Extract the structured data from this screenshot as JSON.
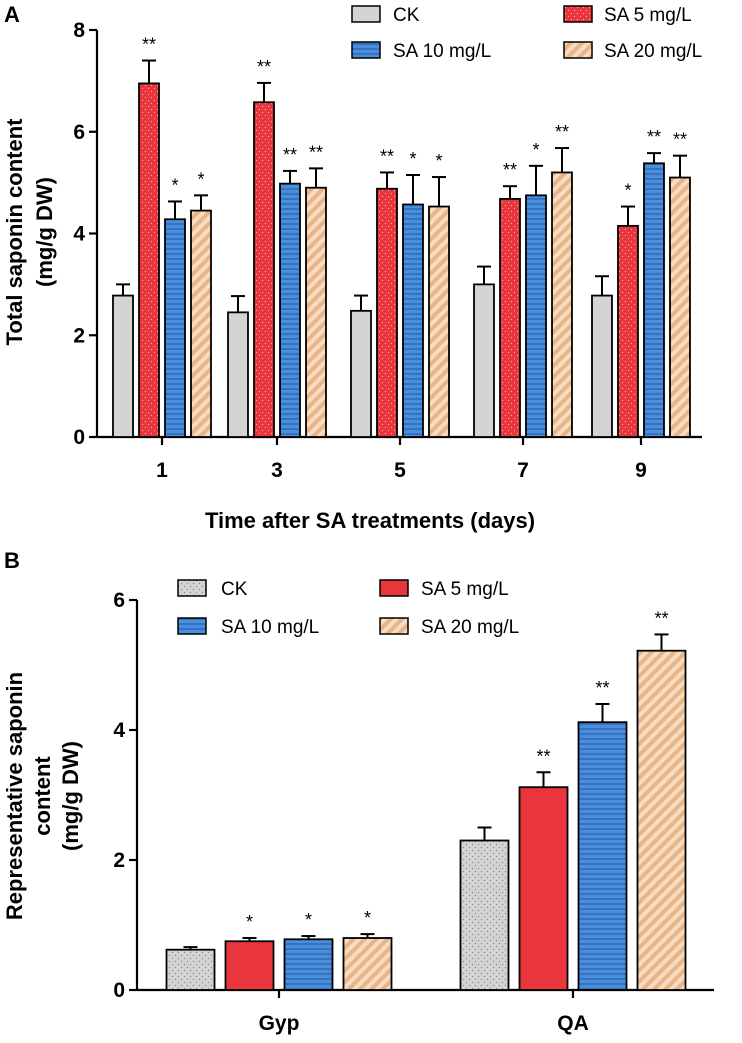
{
  "colors": {
    "ck": "#d4d4d4",
    "sa5": "#e8363c",
    "sa10": "#4a8fde",
    "sa20": "#f5c7a0",
    "sa20_stripe": "#dfa77a",
    "sa10_stripe": "#2a5fa8",
    "axis": "#000000"
  },
  "chart_data": [
    {
      "type": "bar",
      "panel_label": "A",
      "xlabel": "Time after SA treatments (days)",
      "ylabel_lines": [
        "Total saponin content",
        "(mg/g DW)"
      ],
      "ylim": [
        0,
        8
      ],
      "yticks": [
        "0",
        "2",
        "4",
        "6",
        "8"
      ],
      "legend_position": "top-right",
      "categories": [
        "1",
        "3",
        "5",
        "7",
        "9"
      ],
      "series": [
        {
          "name": "CK",
          "values": [
            2.78,
            2.45,
            2.48,
            3.0,
            2.78
          ],
          "errors": [
            0.22,
            0.32,
            0.3,
            0.35,
            0.38
          ],
          "sig": [
            "",
            "",
            "",
            "",
            ""
          ]
        },
        {
          "name": "SA 5 mg/L",
          "values": [
            6.95,
            6.58,
            4.88,
            4.68,
            4.15
          ],
          "errors": [
            0.45,
            0.38,
            0.32,
            0.25,
            0.38
          ],
          "sig": [
            "**",
            "**",
            "**",
            "**",
            "*"
          ]
        },
        {
          "name": "SA 10 mg/L",
          "values": [
            4.28,
            4.98,
            4.57,
            4.75,
            5.38
          ],
          "errors": [
            0.35,
            0.25,
            0.58,
            0.58,
            0.2
          ],
          "sig": [
            "*",
            "**",
            "*",
            "*",
            "**"
          ]
        },
        {
          "name": "SA 20 mg/L",
          "values": [
            4.45,
            4.9,
            4.53,
            5.2,
            5.1
          ],
          "errors": [
            0.3,
            0.38,
            0.58,
            0.48,
            0.43
          ],
          "sig": [
            "*",
            "**",
            "*",
            "**",
            "**"
          ]
        }
      ]
    },
    {
      "type": "bar",
      "panel_label": "B",
      "xlabel": "",
      "ylabel_lines": [
        "Representative saponin",
        "content",
        "(mg/g DW)"
      ],
      "ylim": [
        0,
        6
      ],
      "yticks": [
        "0",
        "2",
        "4",
        "6"
      ],
      "legend_position": "top-left",
      "categories": [
        "Gyp",
        "QA"
      ],
      "series": [
        {
          "name": "CK",
          "values": [
            0.62,
            2.3
          ],
          "errors": [
            0.04,
            0.2
          ],
          "sig": [
            "",
            ""
          ]
        },
        {
          "name": "SA 5 mg/L",
          "values": [
            0.75,
            3.12
          ],
          "errors": [
            0.05,
            0.23
          ],
          "sig": [
            "*",
            "**"
          ]
        },
        {
          "name": "SA 10 mg/L",
          "values": [
            0.78,
            4.12
          ],
          "errors": [
            0.05,
            0.28
          ],
          "sig": [
            "*",
            "**"
          ]
        },
        {
          "name": "SA 20 mg/L",
          "values": [
            0.8,
            5.22
          ],
          "errors": [
            0.06,
            0.25
          ],
          "sig": [
            "*",
            "**"
          ]
        }
      ]
    }
  ]
}
